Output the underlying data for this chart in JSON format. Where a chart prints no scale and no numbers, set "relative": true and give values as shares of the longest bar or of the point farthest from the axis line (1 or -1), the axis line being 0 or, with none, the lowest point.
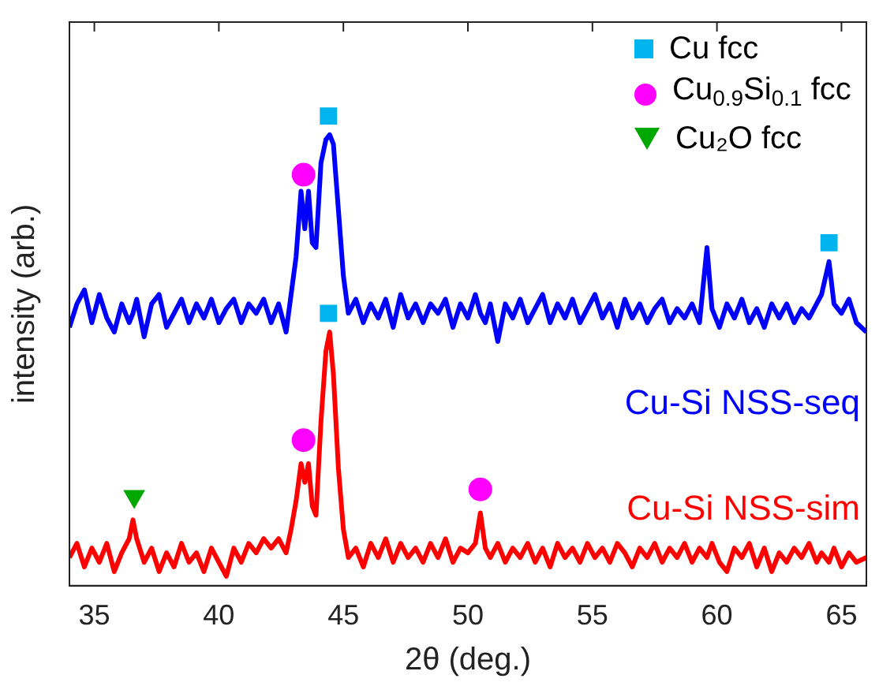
{
  "chart_data": {
    "type": "line",
    "xlabel": "2θ (deg.)",
    "ylabel": "intensity (arb.)",
    "relative": true,
    "xlim": [
      34,
      66
    ],
    "xticks": [
      35,
      40,
      45,
      50,
      55,
      60,
      65
    ],
    "legend": "top right",
    "grid": false,
    "line_style": "solid",
    "marker": "none",
    "x": [
      34.0,
      34.3,
      34.6,
      34.9,
      35.2,
      35.5,
      35.8,
      36.1,
      36.4,
      36.55,
      36.7,
      37.0,
      37.3,
      37.6,
      37.9,
      38.2,
      38.5,
      38.8,
      39.1,
      39.4,
      39.7,
      40.0,
      40.3,
      40.6,
      40.9,
      41.2,
      41.5,
      41.8,
      42.1,
      42.4,
      42.7,
      42.9,
      43.1,
      43.3,
      43.45,
      43.6,
      43.75,
      43.9,
      44.1,
      44.3,
      44.45,
      44.6,
      44.8,
      45.0,
      45.2,
      45.5,
      45.8,
      46.1,
      46.4,
      46.7,
      47.0,
      47.3,
      47.6,
      47.9,
      48.2,
      48.5,
      48.8,
      49.1,
      49.4,
      49.7,
      50.0,
      50.3,
      50.5,
      50.7,
      50.9,
      51.2,
      51.5,
      51.8,
      52.1,
      52.4,
      52.7,
      53.0,
      53.3,
      53.6,
      53.9,
      54.2,
      54.5,
      54.8,
      55.1,
      55.4,
      55.7,
      56.0,
      56.3,
      56.6,
      56.9,
      57.2,
      57.5,
      57.8,
      58.1,
      58.4,
      58.7,
      59.0,
      59.3,
      59.6,
      59.8,
      60.1,
      60.4,
      60.7,
      61.0,
      61.3,
      61.6,
      61.9,
      62.2,
      62.5,
      62.8,
      63.1,
      63.4,
      63.7,
      64.0,
      64.2,
      64.5,
      64.7,
      65.0,
      65.3,
      65.6,
      66.0
    ],
    "series": [
      {
        "name": "Cu-Si NSS-seq",
        "color": "#0000ff",
        "values": [
          0.55,
          0.6,
          0.63,
          0.56,
          0.62,
          0.57,
          0.54,
          0.6,
          0.56,
          0.58,
          0.61,
          0.53,
          0.6,
          0.62,
          0.55,
          0.58,
          0.61,
          0.56,
          0.6,
          0.57,
          0.61,
          0.56,
          0.59,
          0.61,
          0.56,
          0.6,
          0.58,
          0.61,
          0.56,
          0.6,
          0.54,
          0.62,
          0.7,
          0.84,
          0.76,
          0.84,
          0.73,
          0.72,
          0.9,
          0.95,
          0.96,
          0.94,
          0.8,
          0.66,
          0.58,
          0.61,
          0.56,
          0.6,
          0.57,
          0.61,
          0.55,
          0.62,
          0.57,
          0.6,
          0.56,
          0.6,
          0.58,
          0.61,
          0.55,
          0.6,
          0.57,
          0.62,
          0.58,
          0.56,
          0.6,
          0.52,
          0.6,
          0.57,
          0.61,
          0.56,
          0.59,
          0.62,
          0.56,
          0.6,
          0.57,
          0.61,
          0.56,
          0.59,
          0.62,
          0.57,
          0.6,
          0.55,
          0.61,
          0.57,
          0.6,
          0.56,
          0.59,
          0.61,
          0.56,
          0.59,
          0.57,
          0.6,
          0.56,
          0.72,
          0.59,
          0.55,
          0.6,
          0.57,
          0.61,
          0.56,
          0.59,
          0.55,
          0.6,
          0.57,
          0.6,
          0.56,
          0.59,
          0.57,
          0.6,
          0.62,
          0.69,
          0.6,
          0.58,
          0.61,
          0.56,
          0.54
        ]
      },
      {
        "name": "Cu-Si NSS-sim",
        "color": "#ff0000",
        "values": [
          0.06,
          0.09,
          0.04,
          0.08,
          0.05,
          0.09,
          0.03,
          0.07,
          0.1,
          0.14,
          0.1,
          0.05,
          0.08,
          0.03,
          0.07,
          0.04,
          0.09,
          0.05,
          0.07,
          0.03,
          0.08,
          0.05,
          0.02,
          0.08,
          0.05,
          0.09,
          0.07,
          0.1,
          0.08,
          0.1,
          0.07,
          0.12,
          0.18,
          0.26,
          0.22,
          0.26,
          0.17,
          0.15,
          0.35,
          0.5,
          0.54,
          0.45,
          0.25,
          0.12,
          0.06,
          0.08,
          0.04,
          0.09,
          0.06,
          0.1,
          0.05,
          0.09,
          0.06,
          0.08,
          0.05,
          0.09,
          0.06,
          0.1,
          0.05,
          0.08,
          0.07,
          0.09,
          0.155,
          0.08,
          0.06,
          0.09,
          0.05,
          0.08,
          0.06,
          0.09,
          0.05,
          0.08,
          0.04,
          0.09,
          0.06,
          0.08,
          0.05,
          0.09,
          0.06,
          0.08,
          0.05,
          0.09,
          0.07,
          0.04,
          0.08,
          0.06,
          0.09,
          0.05,
          0.08,
          0.06,
          0.09,
          0.05,
          0.08,
          0.06,
          0.09,
          0.05,
          0.03,
          0.08,
          0.06,
          0.09,
          0.04,
          0.08,
          0.03,
          0.07,
          0.05,
          0.08,
          0.06,
          0.09,
          0.05,
          0.07,
          0.05,
          0.08,
          0.04,
          0.07,
          0.05,
          0.06
        ]
      },
      {
        "name": "Cu fcc",
        "type": "scatter",
        "marker": "square",
        "color": "#00b4f0",
        "x": [
          44.4,
          44.4,
          64.5
        ],
        "values": [
          1.0,
          0.58,
          0.73
        ]
      },
      {
        "name": "Cu$_{0.9}$Si$_{0.1}$ fcc",
        "type": "scatter",
        "marker": "circle",
        "color": "#ff00ff",
        "x": [
          43.4,
          43.4,
          50.5
        ],
        "values": [
          0.875,
          0.31,
          0.205
        ]
      },
      {
        "name": "Cu₂O fcc",
        "type": "scatter",
        "marker": "triangle",
        "color": "#00a800",
        "x": [
          36.6
        ],
        "values": [
          0.19
        ]
      }
    ]
  }
}
